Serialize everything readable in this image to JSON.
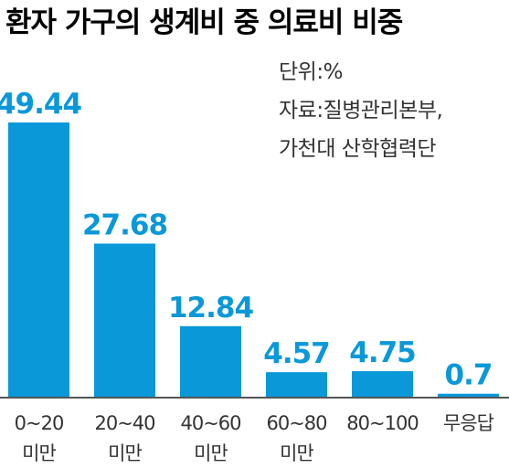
{
  "chart_data": {
    "type": "bar",
    "title": "환자 가구의 생계비 중 의료비 비중",
    "unit_note": "단위:%",
    "source_note_line1": "자료:질병관리본부,",
    "source_note_line2": "가천대 산학협력단",
    "categories": [
      {
        "line1": "0~20",
        "line2": "미만"
      },
      {
        "line1": "20~40",
        "line2": "미만"
      },
      {
        "line1": "40~60",
        "line2": "미만"
      },
      {
        "line1": "60~80",
        "line2": "미만"
      },
      {
        "line1": "80~100",
        "line2": ""
      },
      {
        "line1": "무응답",
        "line2": ""
      }
    ],
    "values": [
      49.44,
      27.68,
      12.84,
      4.57,
      4.75,
      0.7
    ],
    "value_labels": [
      "49.44",
      "27.68",
      "12.84",
      "4.57",
      "4.75",
      "0.7"
    ],
    "ylim": [
      0,
      55
    ],
    "grid": false,
    "colors": {
      "bar": "#0a98d8",
      "value_label": "#0a98d8",
      "axis": "#555555"
    }
  }
}
